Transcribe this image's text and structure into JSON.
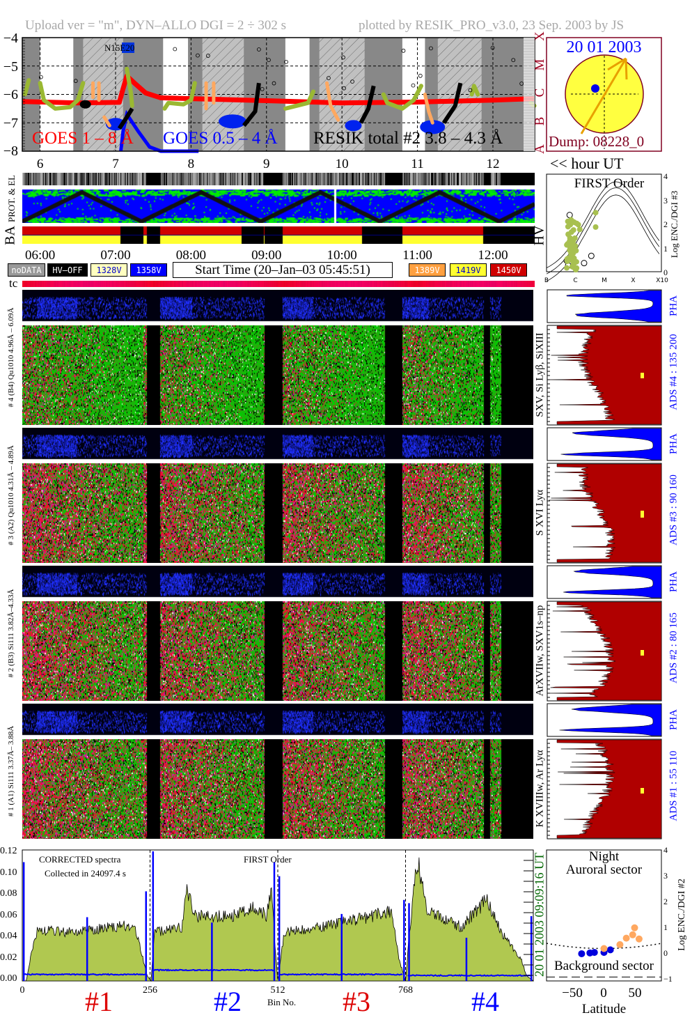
{
  "header": {
    "left": "Upload ver = \"m\", DYN–ALLO DGI =   2 ÷ 302 s",
    "right": "plotted by RESIK_PRO_v3.0, 23 Sep. 2003 by JS"
  },
  "goes_panel": {
    "y_ticks": [
      "−4",
      "−5",
      "−6",
      "−7",
      "−8"
    ],
    "class_letters": [
      "A",
      "B",
      "C",
      "M",
      "X"
    ],
    "legend_goes_long": "GOES 1 – 8 Å",
    "legend_goes_short": "GOES 0.5 – 4 Å",
    "legend_resik": "RESIK total #2  3.8 – 4.3 Å",
    "noaa_label": "N15E20",
    "hour_ticks": [
      "6",
      "7",
      "8",
      "9",
      "10",
      "11",
      "12"
    ],
    "hour_axis_label": "<< hour UT"
  },
  "sun": {
    "date": "20 01 2003",
    "dump": "Dump: 08228_0"
  },
  "particles": {
    "label_prot": "PROT. & EL",
    "label_ba": "BA",
    "label_hv": "HV"
  },
  "time_axis": [
    "06:00",
    "07:00",
    "08:00",
    "09:00",
    "10:00",
    "11:00",
    "12:00"
  ],
  "legend": {
    "nodata": "noDATA",
    "hvoff": "HV–OFF",
    "v1328": "1328V",
    "v1358": "1358V",
    "start_time": "Start Time (20–Jan–03 05:45:51)",
    "v1389": "1389V",
    "v1419": "1419V",
    "v1450": "1450V",
    "colors": {
      "nodata": "#999999",
      "hvoff": "#000000",
      "v1328": "#ffffc0",
      "v1358": "#0000ff",
      "v1389": "#ffa040",
      "v1419": "#ffff30",
      "v1450": "#d00000"
    }
  },
  "tc_label": "tc",
  "first_order": {
    "title": "FIRST Order",
    "ylabel": "Log ENC./DGI #3",
    "y_ticks": [
      "0",
      "1",
      "2",
      "3",
      "4"
    ],
    "x_ticks": [
      "B",
      "C",
      "M",
      "X",
      "X10"
    ]
  },
  "channels": [
    {
      "left_label": "# 4 (B4) Qu1010 4.96Å – 6.09Å",
      "line_label": "SXV, Si Lyβ, SiXIII",
      "ads_label": "ADS #4 :   135 200",
      "pha_label": "PHA",
      "palette": "green-red"
    },
    {
      "left_label": "# 3 (A2) Qu1010 4.31Å – 4.89Å",
      "line_label": "S XVI Lyα",
      "ads_label": "ADS #3 :   90 160",
      "pha_label": "PHA",
      "palette": "red-green"
    },
    {
      "left_label": "# 2 (B3) Si111 3.82Å–4.33Å",
      "line_label": "ArXVIIw, SXV1s–np",
      "ads_label": "ADS #2 :   80 165",
      "pha_label": "PHA",
      "palette": "red-green"
    },
    {
      "left_label": "# 1 (A1) Si111 3.37Å– 3.88Å",
      "line_label": "K XVIIIw, Ar Lyα",
      "ads_label": "ADS #1 :   55 110",
      "pha_label": "PHA",
      "palette": "red-green"
    }
  ],
  "spectrum": {
    "annotation_1": "CORRECTED spectra",
    "annotation_2": "Collected in 24097.4 s",
    "order_label": "FIRST Order",
    "xlabel": "Bin No.",
    "x_ticks": [
      "0",
      "256",
      "512",
      "768"
    ],
    "y_ticks": [
      "0.12",
      "0.10",
      "0.08",
      "0.06",
      "0.04",
      "0.02",
      "0.00"
    ],
    "timestamp": "20 01 2003   09:09:16 UT",
    "channel_labels": [
      "#1",
      "#2",
      "#3",
      "#4"
    ],
    "channel_label_colors": [
      "#dd0000",
      "#0000ff",
      "#dd0000",
      "#0000ff"
    ]
  },
  "latitude": {
    "title_1": "Night",
    "title_2": "Auroral sector",
    "bottom_label": "Background sector",
    "xlabel": "Latitude",
    "ylabel": "Log ENC./DGI #2",
    "x_ticks": [
      "−50",
      "0",
      "50"
    ],
    "y_ticks": [
      "4",
      "3",
      "2",
      "1",
      "0",
      "−1"
    ]
  },
  "chart_data": [
    {
      "type": "line",
      "name": "goes_resik_lightcurve",
      "xlabel": "hour UT",
      "ylim": [
        -8,
        -4
      ],
      "xlim": [
        5.764,
        12.55
      ],
      "grid": true,
      "white_intervals_h": [
        [
          6.0,
          6.44
        ],
        [
          7.63,
          7.96
        ],
        [
          9.25,
          9.57
        ],
        [
          10.8,
          11.1
        ]
      ],
      "hatched_intervals_h": [
        [
          6.57,
          7.1
        ],
        [
          8.15,
          8.7
        ],
        [
          9.7,
          10.3
        ],
        [
          11.27,
          11.85
        ]
      ],
      "gaps_h": [
        [
          7.41,
          7.59
        ],
        [
          8.97,
          9.21
        ],
        [
          10.57,
          10.8
        ],
        [
          11.88,
          11.96
        ],
        [
          12.11,
          12.55
        ]
      ],
      "series": [
        {
          "name": "GOES 1 – 8 Å",
          "color": "#ff0000",
          "points": [
            [
              5.77,
              -6.25
            ],
            [
              6.5,
              -6.3
            ],
            [
              7.05,
              -6.28
            ],
            [
              7.1,
              -5.8
            ],
            [
              7.15,
              -5.35
            ],
            [
              7.25,
              -5.6
            ],
            [
              7.4,
              -5.95
            ],
            [
              7.6,
              -6.12
            ],
            [
              8.0,
              -6.15
            ],
            [
              9.0,
              -6.22
            ],
            [
              10.0,
              -6.3
            ],
            [
              11.0,
              -6.27
            ],
            [
              12.0,
              -6.2
            ],
            [
              12.55,
              -6.15
            ]
          ]
        },
        {
          "name": "GOES 0.5 – 4 Å",
          "color": "#0000ff",
          "points": [
            [
              7.07,
              -8.0
            ],
            [
              7.1,
              -7.3
            ],
            [
              7.15,
              -6.7
            ],
            [
              7.3,
              -7.3
            ],
            [
              7.45,
              -7.85
            ],
            [
              7.6,
              -8.0
            ],
            [
              8.1,
              -8.0
            ]
          ]
        },
        {
          "name": "RESIK total #2  3.8 – 4.3 Å",
          "color": "#9ab832",
          "segments": [
            [
              [
                5.8,
                -6.0
              ],
              [
                5.85,
                -5.5
              ]
            ],
            [
              [
                6.0,
                -5.6
              ],
              [
                6.05,
                -6.2
              ],
              [
                6.2,
                -6.5
              ],
              [
                6.4,
                -6.45
              ],
              [
                6.5,
                -6.2
              ],
              [
                6.57,
                -5.6
              ]
            ],
            [
              [
                7.15,
                -5.1
              ],
              [
                7.2,
                -5.9
              ],
              [
                7.22,
                -6.4
              ]
            ],
            [
              [
                7.65,
                -6.5
              ],
              [
                7.7,
                -6.3
              ],
              [
                7.9,
                -6.35
              ],
              [
                8.0,
                -6.2
              ],
              [
                8.05,
                -5.6
              ]
            ],
            [
              [
                9.25,
                -6.5
              ],
              [
                9.4,
                -6.4
              ],
              [
                9.55,
                -6.3
              ],
              [
                9.62,
                -5.9
              ]
            ],
            [
              [
                10.55,
                -6.0
              ],
              [
                10.6,
                -6.3
              ],
              [
                10.8,
                -6.5
              ],
              [
                10.95,
                -6.2
              ],
              [
                11.05,
                -5.7
              ]
            ],
            [
              [
                11.72,
                -6.0
              ],
              [
                11.75,
                -5.7
              ],
              [
                11.8,
                -6.0
              ]
            ],
            [
              [
                12.5,
                -6.3
              ],
              [
                12.55,
                -6.4
              ]
            ]
          ]
        }
      ]
    },
    {
      "type": "line",
      "name": "corrected_spectrum",
      "xlabel": "Bin No.",
      "xlim": [
        0,
        1024
      ],
      "ylim": [
        0,
        0.12
      ],
      "series": [
        {
          "name": "FIRST Order",
          "color": "#b0c850",
          "control_points": [
            [
              0,
              0
            ],
            [
              8,
              0
            ],
            [
              20,
              0.03
            ],
            [
              30,
              0.047
            ],
            [
              100,
              0.045
            ],
            [
              150,
              0.048
            ],
            [
              220,
              0.052
            ],
            [
              232,
              0.04
            ],
            [
              250,
              0.005
            ],
            [
              258,
              0
            ],
            [
              265,
              0.045
            ],
            [
              320,
              0.05
            ],
            [
              330,
              0.085
            ],
            [
              345,
              0.06
            ],
            [
              420,
              0.06
            ],
            [
              470,
              0.068
            ],
            [
              490,
              0.06
            ],
            [
              500,
              0.09
            ],
            [
              505,
              0.04
            ],
            [
              512,
              0
            ],
            [
              525,
              0.045
            ],
            [
              600,
              0.05
            ],
            [
              700,
              0.06
            ],
            [
              740,
              0.065
            ],
            [
              755,
              0.02
            ],
            [
              768,
              0
            ],
            [
              775,
              0.04
            ],
            [
              785,
              0.09
            ],
            [
              793,
              0.11
            ],
            [
              810,
              0.065
            ],
            [
              880,
              0.05
            ],
            [
              930,
              0.075
            ],
            [
              960,
              0.045
            ],
            [
              1000,
              0.02
            ],
            [
              1010,
              0.005
            ],
            [
              1024,
              0
            ]
          ]
        },
        {
          "name": "background",
          "color": "#0000ff",
          "levels": [
            [
              0,
              256,
              0.006
            ],
            [
              256,
              512,
              0.01
            ],
            [
              512,
              768,
              0.006
            ],
            [
              768,
              1024,
              0.005
            ]
          ],
          "spikes": [
            [
              3,
              0.11
            ],
            [
              130,
              0.059
            ],
            [
              248,
              0.083
            ],
            [
              262,
              0.12
            ],
            [
              380,
              0.054
            ],
            [
              505,
              0.11
            ],
            [
              515,
              0.097
            ],
            [
              640,
              0.062
            ],
            [
              765,
              0.075
            ],
            [
              775,
              0.072
            ],
            [
              890,
              0.04
            ],
            [
              1020,
              0.06
            ]
          ]
        }
      ]
    },
    {
      "type": "scatter",
      "name": "latitude_plot",
      "xlim": [
        -90,
        90
      ],
      "ylim": [
        -1,
        4
      ],
      "series": [
        {
          "name": "blue",
          "color": "#0000dd",
          "points": [
            [
              -35,
              0.05
            ],
            [
              -22,
              0.08
            ],
            [
              -15,
              0.1
            ],
            [
              0,
              0.1
            ],
            [
              10,
              0.2
            ]
          ]
        },
        {
          "name": "orange",
          "color": "#ffa860",
          "points": [
            [
              0,
              0.25
            ],
            [
              25,
              0.4
            ],
            [
              35,
              0.65
            ],
            [
              45,
              0.78
            ],
            [
              48,
              1.05
            ],
            [
              55,
              0.62
            ]
          ]
        }
      ]
    },
    {
      "type": "scatter",
      "name": "first_order_scatter",
      "xlim": [
        "B",
        "X10"
      ],
      "ylim": [
        0,
        4
      ],
      "series": [
        {
          "name": "green",
          "color": "#9ab832",
          "points": [
            [
              1.6,
              0.1
            ],
            [
              1.65,
              0.5
            ],
            [
              1.7,
              1.0
            ],
            [
              1.65,
              1.5
            ],
            [
              1.7,
              2.0
            ],
            [
              1.75,
              2.1
            ],
            [
              2.0,
              1.9
            ],
            [
              2.05,
              1.7
            ],
            [
              2.6,
              2.4
            ],
            [
              2.6,
              1.8
            ]
          ]
        },
        {
          "name": "open",
          "points": [
            [
              1.7,
              2.3
            ],
            [
              2.2,
              0.3
            ],
            [
              2.45,
              0.6
            ],
            [
              1.6,
              0.4
            ],
            [
              1.65,
              0.2
            ]
          ]
        }
      ]
    }
  ]
}
